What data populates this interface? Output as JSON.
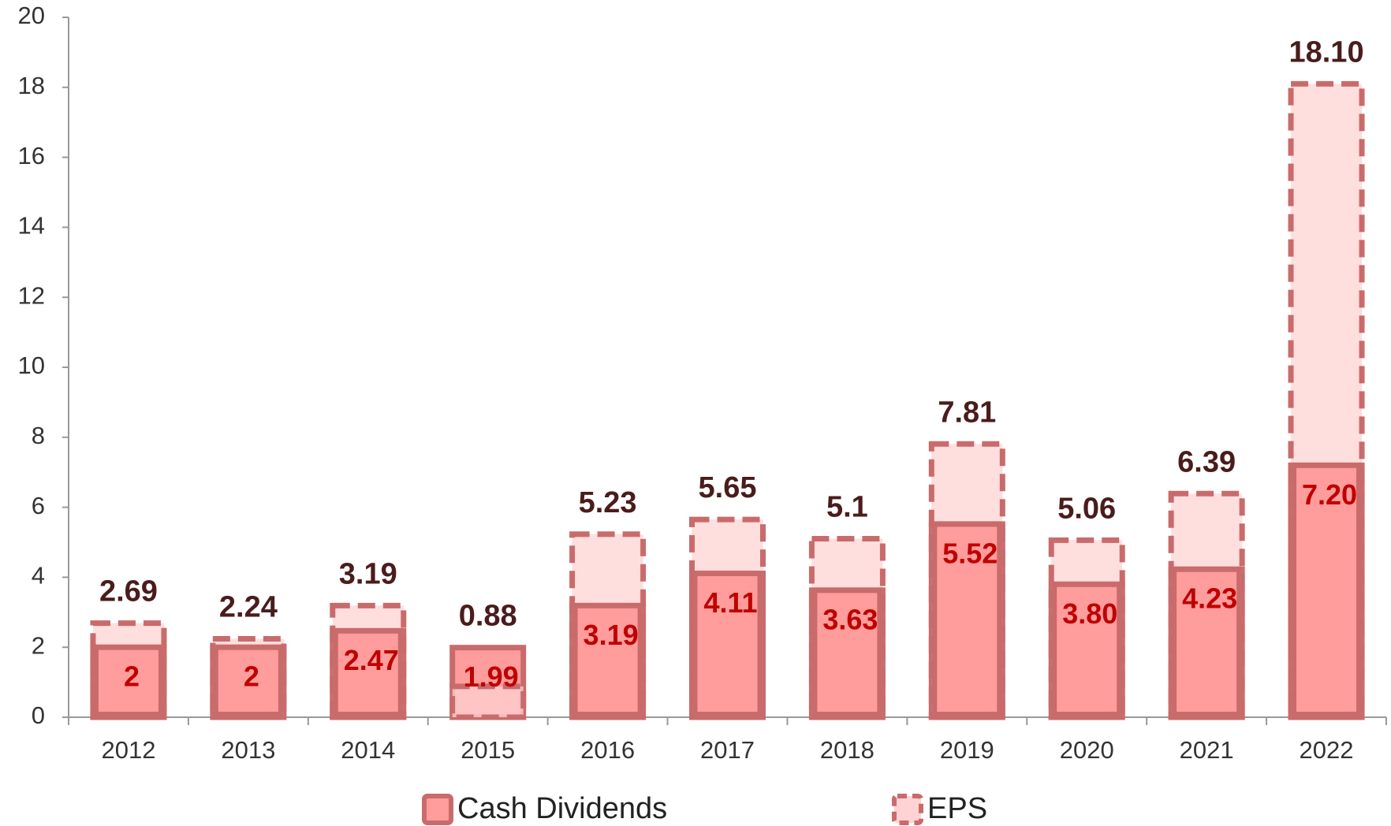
{
  "chart_data": {
    "type": "bar",
    "categories": [
      "2012",
      "2013",
      "2014",
      "2015",
      "2016",
      "2017",
      "2018",
      "2019",
      "2020",
      "2021",
      "2022"
    ],
    "series": [
      {
        "name": "Cash Dividends",
        "color": "#ff9c9c",
        "values": [
          2,
          2,
          2.47,
          1.99,
          3.19,
          4.11,
          3.63,
          5.52,
          3.8,
          4.23,
          7.2
        ],
        "value_labels": [
          "2",
          "2",
          "2.47",
          "1.99",
          "3.19",
          "4.11",
          "3.63",
          "5.52",
          "3.80",
          "4.23",
          "7.20"
        ]
      },
      {
        "name": "EPS",
        "color": "#ffd3d3",
        "values": [
          2.69,
          2.24,
          3.19,
          0.88,
          5.23,
          5.65,
          5.1,
          7.81,
          5.06,
          6.39,
          18.1
        ],
        "value_labels": [
          "2.69",
          "2.24",
          "3.19",
          "0.88",
          "5.23",
          "5.65",
          "5.1",
          "7.81",
          "5.06",
          "6.39",
          "18.10"
        ]
      }
    ],
    "ylim": [
      0,
      20
    ],
    "yticks": [
      0,
      2,
      4,
      6,
      8,
      10,
      12,
      14,
      16,
      18,
      20
    ],
    "grid": false,
    "legend": "bottom"
  }
}
